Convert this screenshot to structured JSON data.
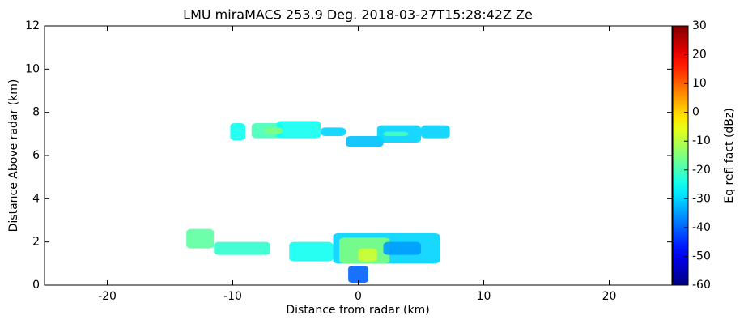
{
  "chart_data": {
    "type": "heatmap",
    "title": "LMU miraMACS 253.9 Deg. 2018-03-27T15:28:42Z  Ze",
    "x_label": "Distance from radar (km)",
    "y_label": "Distance Above radar  (km)",
    "colorbar_label": "Eq refl fact (dBz)",
    "colormap": "jet",
    "xlim": [
      -25,
      25
    ],
    "xticks": [
      -20,
      -10,
      0,
      10,
      20
    ],
    "ylim": [
      0,
      12
    ],
    "yticks": [
      0,
      2,
      4,
      6,
      8,
      10,
      12
    ],
    "clim": [
      -60,
      30
    ],
    "cticks": [
      -60,
      -50,
      -40,
      -30,
      -20,
      -10,
      0,
      10,
      20,
      30
    ],
    "regions": [
      {
        "x": [
          -10.2,
          -9.0
        ],
        "y": [
          6.7,
          7.5
        ],
        "value": -25
      },
      {
        "x": [
          -8.5,
          -6.0
        ],
        "y": [
          6.8,
          7.5
        ],
        "value": -20
      },
      {
        "x": [
          -6.5,
          -3.0
        ],
        "y": [
          6.8,
          7.6
        ],
        "value": -25
      },
      {
        "x": [
          -3.0,
          -1.0
        ],
        "y": [
          6.9,
          7.3
        ],
        "value": -30
      },
      {
        "x": [
          -1.0,
          2.0
        ],
        "y": [
          6.4,
          6.9
        ],
        "value": -32
      },
      {
        "x": [
          1.5,
          5.0
        ],
        "y": [
          6.6,
          7.4
        ],
        "value": -30
      },
      {
        "x": [
          5.0,
          7.3
        ],
        "y": [
          6.8,
          7.4
        ],
        "value": -30
      },
      {
        "x": [
          -7.5,
          -6.0
        ],
        "y": [
          7.0,
          7.3
        ],
        "value": -15
      },
      {
        "x": [
          2.0,
          4.0
        ],
        "y": [
          6.9,
          7.1
        ],
        "value": -20
      },
      {
        "x": [
          -13.7,
          -11.5
        ],
        "y": [
          1.7,
          2.6
        ],
        "value": -18
      },
      {
        "x": [
          -11.5,
          -7.0
        ],
        "y": [
          1.4,
          2.0
        ],
        "value": -22
      },
      {
        "x": [
          -5.5,
          -2.0
        ],
        "y": [
          1.1,
          2.0
        ],
        "value": -25
      },
      {
        "x": [
          -2.0,
          6.5
        ],
        "y": [
          1.0,
          2.4
        ],
        "value": -30
      },
      {
        "x": [
          -1.5,
          2.5
        ],
        "y": [
          1.0,
          2.2
        ],
        "value": -15
      },
      {
        "x": [
          0.0,
          1.5
        ],
        "y": [
          1.1,
          1.7
        ],
        "value": -8
      },
      {
        "x": [
          2.0,
          5.0
        ],
        "y": [
          1.4,
          2.0
        ],
        "value": -35
      },
      {
        "x": [
          -0.8,
          0.8
        ],
        "y": [
          0.1,
          0.9
        ],
        "value": -40
      }
    ]
  }
}
